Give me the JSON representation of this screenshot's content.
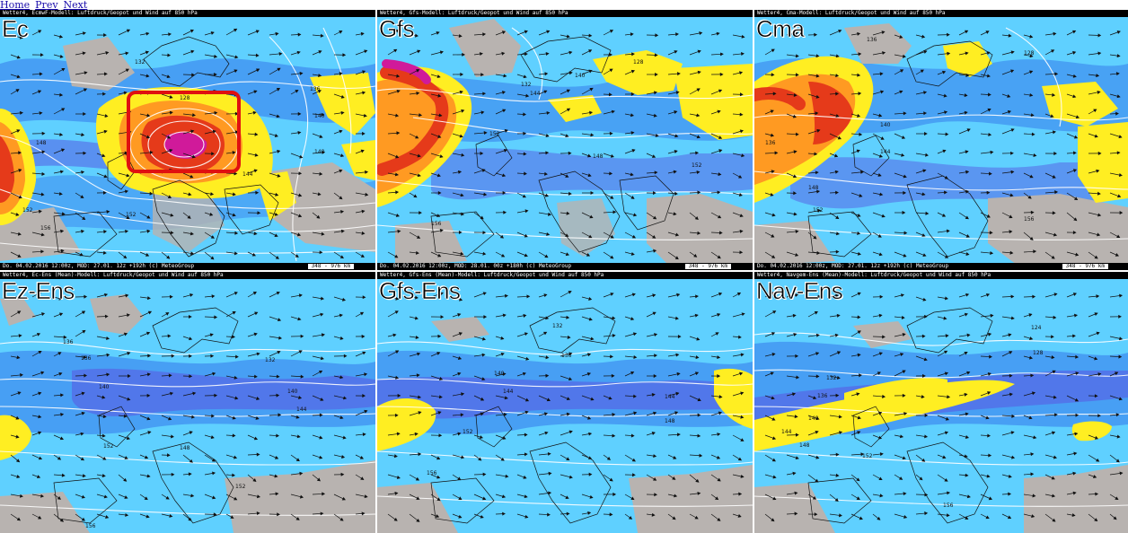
{
  "nav": {
    "home": "Home",
    "prev": "Prev",
    "next": "Next"
  },
  "panels": [
    {
      "label": "Ec",
      "header": "Wetter4, EcmwF-Modell: Luftdruck/Geopot und Wind auf 850 hPa",
      "footer": "Do. 04.02.2016 12:00z, MOD: 27.01. 12z +192h (c) MeteoGroup",
      "scale": "348 - 976 km"
    },
    {
      "label": "Gfs",
      "header": "Wetter4, Gfs-Modell: Luftdruck/Geopot und Wind auf 850 hPa",
      "footer": "Do. 04.02.2016 12:00z, MOD: 28.01. 00z +180h (c) MeteoGroup",
      "scale": "348 - 976 km"
    },
    {
      "label": "Cma",
      "header": "Wetter4, Cma-Modell: Luftdruck/Geopot und Wind auf 850 hPa",
      "footer": "Do. 04.02.2016 12:00z, MOD: 27.01. 12z +192h (c) MeteoGroup",
      "scale": "348 - 976 km"
    },
    {
      "label": "Ez-Ens",
      "header": "Wetter4, Ec-Ens (Mean)-Modell: Luftdruck/Geopot und Wind auf 850 hPa"
    },
    {
      "label": "Gfs-Ens",
      "header": "Wetter4, Gfs-Ens (Mean)-Modell: Luftdruck/Geopot und Wind auf 850 hPa"
    },
    {
      "label": "Nav-Ens",
      "header": "Wetter4, Navgem-Ens (Mean)-Modell: Luftdruck/Geopot und Wind auf 850 hPa"
    }
  ],
  "contour_labels": {
    "p0": [
      "148",
      "152",
      "156",
      "128",
      "132",
      "136",
      "140",
      "144",
      "148",
      "152"
    ],
    "p1": [
      "128",
      "132",
      "140",
      "144",
      "152",
      "148",
      "156",
      "152"
    ],
    "p2": [
      "136",
      "128",
      "140",
      "144",
      "148",
      "152",
      "156",
      "136"
    ],
    "p3": [
      "136",
      "136",
      "140",
      "140",
      "144",
      "148",
      "152",
      "156",
      "152",
      "132"
    ],
    "p4": [
      "132",
      "136",
      "140",
      "144",
      "148",
      "152",
      "156",
      "144"
    ],
    "p5": [
      "124",
      "128",
      "132",
      "136",
      "140",
      "144",
      "148",
      "152",
      "156"
    ]
  },
  "colors": {
    "wind_light": "#5fd0ff",
    "wind_mid": "#3f8ff0",
    "wind_strong": "#5566e6",
    "land_gray": "#b8b3b0",
    "jet_yellow": "#ffee22",
    "jet_orange": "#ff9a22",
    "jet_red": "#e53a1a",
    "highlight": "#e01010"
  }
}
